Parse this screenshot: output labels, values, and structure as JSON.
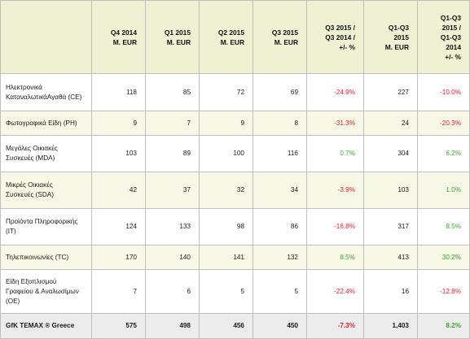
{
  "table": {
    "headers": [
      "Q4 2014\nM. EUR",
      "Q1 2015\nM. EUR",
      "Q2 2015\nM. EUR",
      "Q3 2015\nM. EUR",
      "Q3 2015 /\nQ3 2014 /\n+/- %",
      "Q1-Q3\n2015\nM. EUR",
      "Q1-Q3\n2015 /\nQ1-Q3\n2014\n+/- %"
    ],
    "rows": [
      {
        "label": "Ηλεκτρονικά\nΚαταναλωτικάΑγαθά (CE)",
        "q4_2014": "118",
        "q1_2015": "85",
        "q2_2015": "72",
        "q3_2015": "69",
        "q3_change": "-24.9%",
        "ytd_2015": "227",
        "ytd_change": "-10.0%"
      },
      {
        "label": "Φωτογραφικά Είδη (PH)",
        "q4_2014": "9",
        "q1_2015": "7",
        "q2_2015": "9",
        "q3_2015": "8",
        "q3_change": "-31.3%",
        "ytd_2015": "24",
        "ytd_change": "-20.3%"
      },
      {
        "label": "Μεγάλες Οικιακές\nΣυσκευές (MDA)",
        "q4_2014": "103",
        "q1_2015": "89",
        "q2_2015": "100",
        "q3_2015": "116",
        "q3_change": "0.7%",
        "ytd_2015": "304",
        "ytd_change": "6.2%"
      },
      {
        "label": "Μικρές Οικιακές\nΣυσκευές (SDA)",
        "q4_2014": "42",
        "q1_2015": "37",
        "q2_2015": "32",
        "q3_2015": "34",
        "q3_change": "-3.9%",
        "ytd_2015": "103",
        "ytd_change": "1.0%"
      },
      {
        "label": "Προϊόντα Πληροφορικής\n(IT)",
        "q4_2014": "124",
        "q1_2015": "133",
        "q2_2015": "98",
        "q3_2015": "86",
        "q3_change": "-16.8%",
        "ytd_2015": "317",
        "ytd_change": "8.5%"
      },
      {
        "label": "Τηλεπικοινωνίες (TC)",
        "q4_2014": "170",
        "q1_2015": "140",
        "q2_2015": "141",
        "q3_2015": "132",
        "q3_change": "8.5%",
        "ytd_2015": "413",
        "ytd_change": "30.2%"
      },
      {
        "label": "Είδη Εξοπλισμού\nΓραφείου & Αναλωσίμων\n(OE)",
        "q4_2014": "7",
        "q1_2015": "6",
        "q2_2015": "5",
        "q3_2015": "5",
        "q3_change": "-22.4%",
        "ytd_2015": "16",
        "ytd_change": "-12.8%"
      }
    ],
    "total": {
      "label": "GfK TEMAX ® Greece",
      "q4_2014": "575",
      "q1_2015": "498",
      "q2_2015": "456",
      "q3_2015": "450",
      "q3_change": "-7.3%",
      "ytd_2015": "1,403",
      "ytd_change": "8.2%"
    }
  },
  "colors": {
    "header_bg": "#f0f0d2",
    "alt_row_bg": "#f8f8e6",
    "total_bg": "#ececec",
    "negative": "#e8202a",
    "positive": "#3aab2c",
    "border": "#bfbfbf"
  }
}
